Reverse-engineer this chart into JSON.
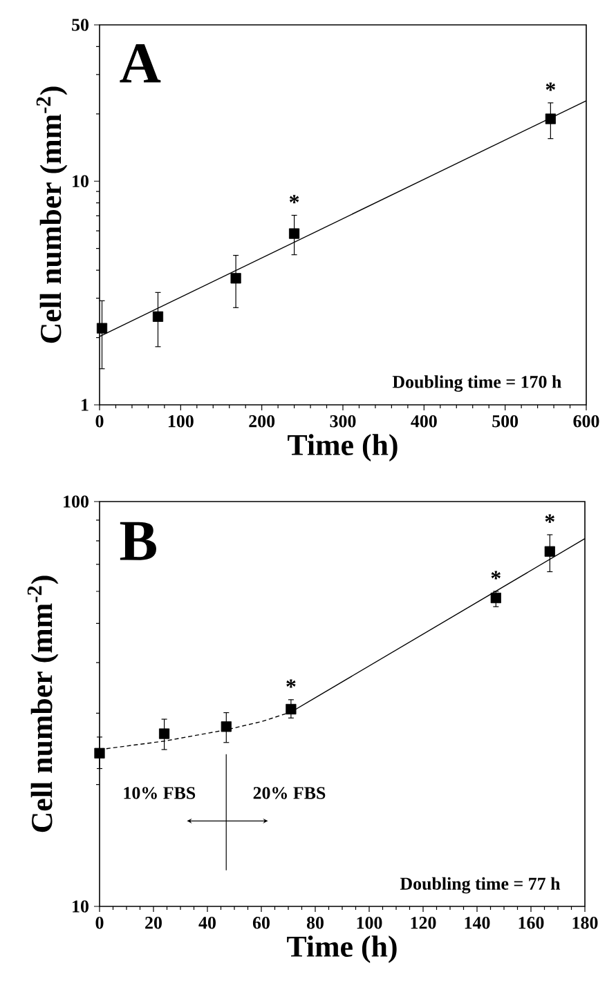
{
  "chart_data": [
    {
      "type": "scatter",
      "title": "A",
      "xlabel": "Time (h)",
      "ylabel": "Cell number (mm$^{-2}$)",
      "log": "y",
      "xlim": [
        0,
        600
      ],
      "ylim": [
        1,
        50
      ],
      "xticks": [
        0,
        100,
        200,
        300,
        400,
        500,
        600
      ],
      "yticks": [
        1,
        10,
        50
      ],
      "marker": "square",
      "series": [
        {
          "color": "#000000",
          "x": [
            3,
            72,
            168,
            240,
            556
          ],
          "values": [
            2.2,
            2.48,
            3.68,
            5.83,
            19.0
          ],
          "errors": [
            [
              1.45,
              2.92
            ],
            [
              1.82,
              3.18
            ],
            [
              2.72,
              4.66
            ],
            [
              4.69,
              7.04
            ],
            [
              15.5,
              22.4
            ]
          ]
        },
        {
          "type": "line",
          "color": "#000000",
          "line_style": "solid",
          "marker": "none",
          "x": [
            0,
            600
          ],
          "values": [
            2.02,
            22.9
          ]
        }
      ],
      "annotations": [
        {
          "text": "*",
          "x": 240,
          "y": 5.83
        },
        {
          "text": "*",
          "x": 556,
          "y": 19.0
        },
        "Doubling time = 170 h"
      ]
    },
    {
      "type": "scatter",
      "title": "B",
      "xlabel": "Time (h)",
      "ylabel": "Cell number (mm$^{-2}$)",
      "log": "y",
      "xlim": [
        0,
        180
      ],
      "ylim": [
        10,
        100
      ],
      "xticks": [
        0,
        20,
        40,
        60,
        80,
        100,
        120,
        140,
        160,
        180
      ],
      "yticks": [
        10,
        100
      ],
      "marker": "square",
      "series": [
        {
          "color": "#000000",
          "x": [
            0,
            24,
            47,
            71,
            147,
            167
          ],
          "values": [
            23.9,
            26.7,
            27.8,
            30.7,
            57.8,
            75.3
          ],
          "errors": [
            [
              21.9,
              26.2
            ],
            [
              24.4,
              29.0
            ],
            [
              25.4,
              30.1
            ],
            [
              29.2,
              32.4
            ],
            [
              55.0,
              60.0
            ],
            [
              67.1,
              82.8
            ]
          ]
        },
        {
          "type": "line",
          "color": "#000000",
          "line_style": "dashed",
          "marker": "none",
          "x": [
            0,
            24,
            47,
            60,
            71
          ],
          "values": [
            24.4,
            25.6,
            27.3,
            28.6,
            30.2
          ]
        },
        {
          "type": "line",
          "color": "#000000",
          "line_style": "solid",
          "marker": "none",
          "x": [
            71,
            180
          ],
          "values": [
            30.2,
            81
          ]
        }
      ],
      "annotations": [
        {
          "text": "*",
          "x": 71,
          "y": 30.7
        },
        {
          "text": "*",
          "x": 147,
          "y": 57.8
        },
        {
          "text": "*",
          "x": 167,
          "y": 75.3
        },
        "10% FBS",
        "20% FBS",
        "Doubling time = 77 h"
      ]
    }
  ]
}
